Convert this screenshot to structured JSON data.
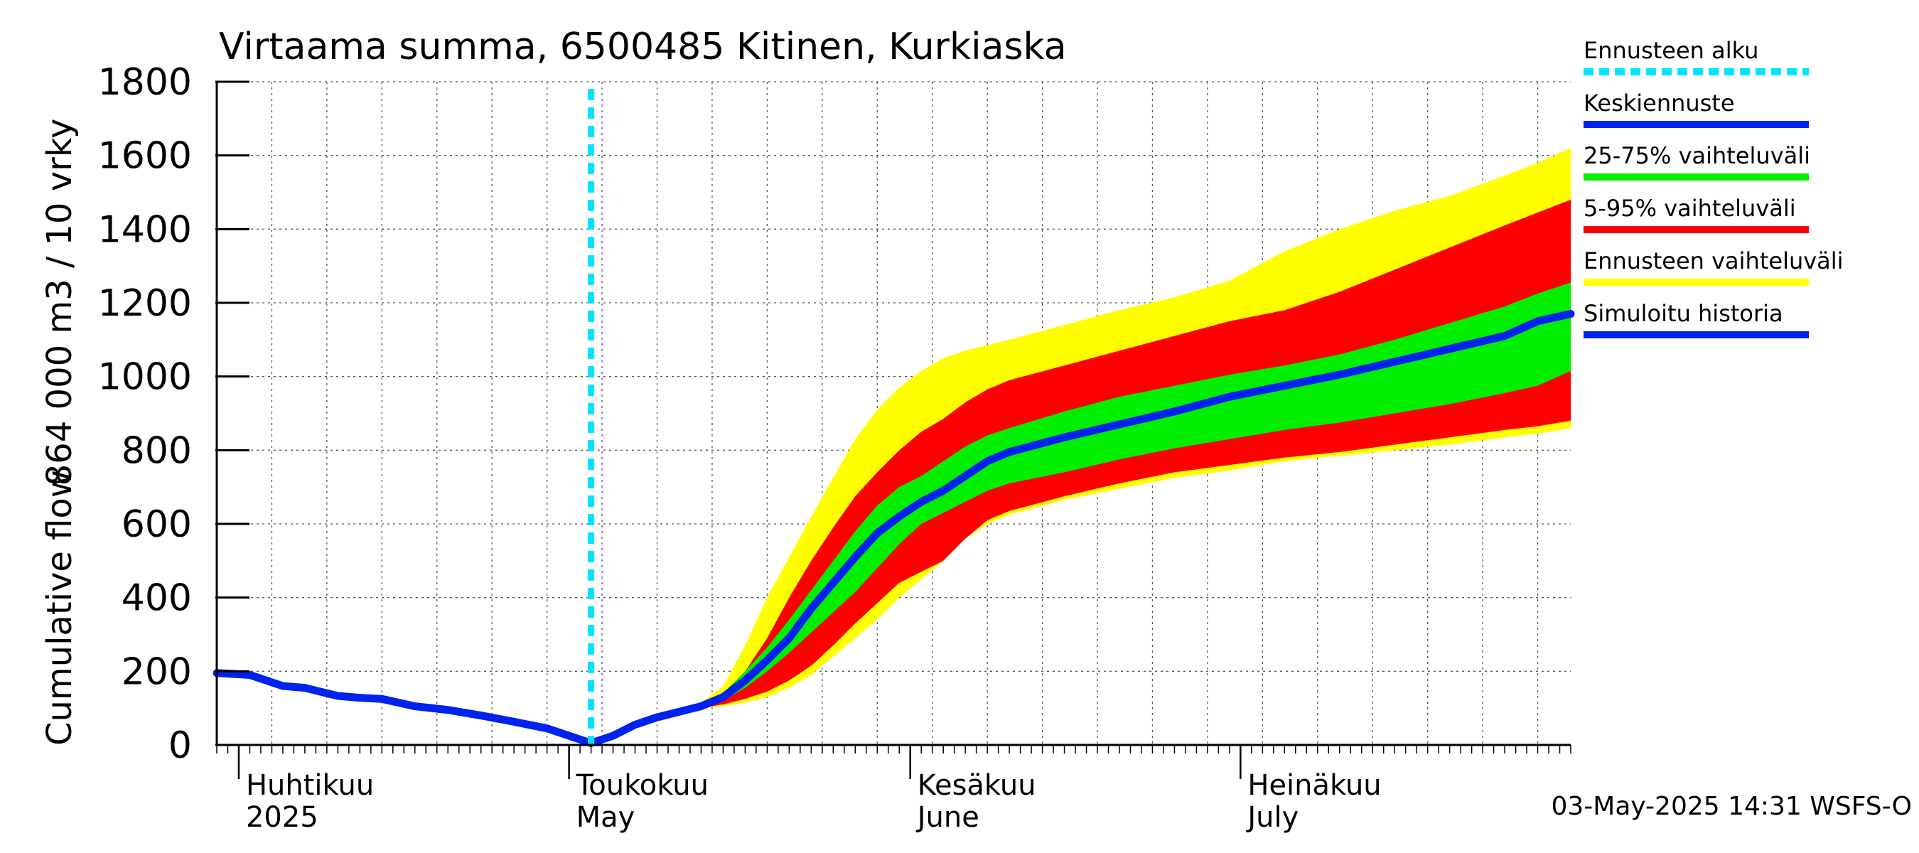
{
  "chart_data": {
    "type": "area",
    "title": "Virtaama summa, 6500485 Kitinen, Kurkiaska",
    "ylabel_line1": "864 000 m3 / 10 vrky",
    "ylabel_line2": "Cumulative flow",
    "ylim": [
      0,
      1800
    ],
    "yticks": [
      {
        "value": 0,
        "label": "0"
      },
      {
        "value": 200,
        "label": "200"
      },
      {
        "value": 400,
        "label": "400"
      },
      {
        "value": 600,
        "label": "600"
      },
      {
        "value": 800,
        "label": "800"
      },
      {
        "value": 1000,
        "label": "1000"
      },
      {
        "value": 1200,
        "label": "1200"
      },
      {
        "value": 1400,
        "label": "1400"
      },
      {
        "value": 1600,
        "label": "1600"
      },
      {
        "value": 1800,
        "label": "1800"
      }
    ],
    "xlim": [
      "2025-03-30",
      "2025-07-31"
    ],
    "month_labels": [
      {
        "date": "2025-04-01",
        "line1": "Huhtikuu",
        "line2": "2025"
      },
      {
        "date": "2025-05-01",
        "line1": "Toukokuu",
        "line2": "May"
      },
      {
        "date": "2025-06-01",
        "line1": "Kesäkuu",
        "line2": "June"
      },
      {
        "date": "2025-07-01",
        "line1": "Heinäkuu",
        "line2": "July"
      }
    ],
    "grid": true,
    "forecast_start": "2025-05-03",
    "footer": "03-May-2025 14:31 WSFS-O",
    "legend_placement": "right",
    "legend": [
      {
        "label": "Ennusteen alku",
        "color": "#00e5ff",
        "style": "dotted"
      },
      {
        "label": "Keskiennuste",
        "color": "#0022ee",
        "style": "solid"
      },
      {
        "label": "25-75% vaihteluväli",
        "color": "#00ee00",
        "style": "solid"
      },
      {
        "label": "5-95% vaihteluväli",
        "color": "#ff0000",
        "style": "solid"
      },
      {
        "label": "Ennusteen vaihteluväli",
        "color": "#ffff00",
        "style": "solid"
      },
      {
        "label": "Simuloitu historia",
        "color": "#0022ee",
        "style": "solid"
      }
    ],
    "colors": {
      "forecast_range": "#ffff00",
      "p5_95": "#ff0000",
      "p25_75": "#00ee00",
      "median": "#0022ee",
      "history": "#0022ee",
      "forecast_start": "#00e5ff"
    },
    "series": {
      "history": [
        [
          "2025-03-30",
          195
        ],
        [
          "2025-04-01",
          192
        ],
        [
          "2025-04-02",
          190
        ],
        [
          "2025-04-05",
          160
        ],
        [
          "2025-04-07",
          155
        ],
        [
          "2025-04-10",
          133
        ],
        [
          "2025-04-12",
          128
        ],
        [
          "2025-04-14",
          125
        ],
        [
          "2025-04-17",
          105
        ],
        [
          "2025-04-20",
          95
        ],
        [
          "2025-04-23",
          80
        ],
        [
          "2025-04-26",
          63
        ],
        [
          "2025-04-29",
          45
        ],
        [
          "2025-05-01",
          25
        ],
        [
          "2025-05-03",
          5
        ]
      ],
      "median": [
        [
          "2025-05-03",
          5
        ],
        [
          "2025-05-05",
          25
        ],
        [
          "2025-05-07",
          55
        ],
        [
          "2025-05-09",
          75
        ],
        [
          "2025-05-11",
          90
        ],
        [
          "2025-05-13",
          105
        ],
        [
          "2025-05-15",
          130
        ],
        [
          "2025-05-17",
          175
        ],
        [
          "2025-05-19",
          230
        ],
        [
          "2025-05-21",
          290
        ],
        [
          "2025-05-23",
          370
        ],
        [
          "2025-05-25",
          440
        ],
        [
          "2025-05-27",
          510
        ],
        [
          "2025-05-29",
          575
        ],
        [
          "2025-05-31",
          620
        ],
        [
          "2025-06-02",
          660
        ],
        [
          "2025-06-04",
          690
        ],
        [
          "2025-06-06",
          730
        ],
        [
          "2025-06-08",
          770
        ],
        [
          "2025-06-10",
          795
        ],
        [
          "2025-06-15",
          835
        ],
        [
          "2025-06-20",
          870
        ],
        [
          "2025-06-25",
          905
        ],
        [
          "2025-06-30",
          945
        ],
        [
          "2025-07-05",
          975
        ],
        [
          "2025-07-10",
          1005
        ],
        [
          "2025-07-15",
          1040
        ],
        [
          "2025-07-20",
          1075
        ],
        [
          "2025-07-25",
          1110
        ],
        [
          "2025-07-28",
          1150
        ],
        [
          "2025-07-31",
          1170
        ]
      ],
      "p25": [
        [
          "2025-05-13",
          100
        ],
        [
          "2025-05-15",
          120
        ],
        [
          "2025-05-17",
          155
        ],
        [
          "2025-05-19",
          200
        ],
        [
          "2025-05-21",
          250
        ],
        [
          "2025-05-23",
          305
        ],
        [
          "2025-05-25",
          360
        ],
        [
          "2025-05-27",
          415
        ],
        [
          "2025-05-29",
          480
        ],
        [
          "2025-05-31",
          545
        ],
        [
          "2025-06-02",
          600
        ],
        [
          "2025-06-04",
          630
        ],
        [
          "2025-06-06",
          660
        ],
        [
          "2025-06-08",
          690
        ],
        [
          "2025-06-10",
          710
        ],
        [
          "2025-06-15",
          740
        ],
        [
          "2025-06-20",
          775
        ],
        [
          "2025-06-25",
          805
        ],
        [
          "2025-06-30",
          830
        ],
        [
          "2025-07-05",
          855
        ],
        [
          "2025-07-10",
          875
        ],
        [
          "2025-07-15",
          900
        ],
        [
          "2025-07-20",
          925
        ],
        [
          "2025-07-25",
          955
        ],
        [
          "2025-07-28",
          975
        ],
        [
          "2025-07-31",
          1015
        ]
      ],
      "p75": [
        [
          "2025-05-13",
          105
        ],
        [
          "2025-05-15",
          140
        ],
        [
          "2025-05-17",
          200
        ],
        [
          "2025-05-19",
          265
        ],
        [
          "2025-05-21",
          340
        ],
        [
          "2025-05-23",
          420
        ],
        [
          "2025-05-25",
          500
        ],
        [
          "2025-05-27",
          580
        ],
        [
          "2025-05-29",
          650
        ],
        [
          "2025-05-31",
          700
        ],
        [
          "2025-06-02",
          730
        ],
        [
          "2025-06-04",
          770
        ],
        [
          "2025-06-06",
          810
        ],
        [
          "2025-06-08",
          840
        ],
        [
          "2025-06-10",
          860
        ],
        [
          "2025-06-15",
          905
        ],
        [
          "2025-06-20",
          945
        ],
        [
          "2025-06-25",
          975
        ],
        [
          "2025-06-30",
          1005
        ],
        [
          "2025-07-05",
          1030
        ],
        [
          "2025-07-10",
          1060
        ],
        [
          "2025-07-15",
          1100
        ],
        [
          "2025-07-20",
          1145
        ],
        [
          "2025-07-25",
          1190
        ],
        [
          "2025-07-28",
          1225
        ],
        [
          "2025-07-31",
          1255
        ]
      ],
      "p5": [
        [
          "2025-05-13",
          100
        ],
        [
          "2025-05-15",
          110
        ],
        [
          "2025-05-17",
          125
        ],
        [
          "2025-05-19",
          145
        ],
        [
          "2025-05-21",
          175
        ],
        [
          "2025-05-23",
          215
        ],
        [
          "2025-05-25",
          270
        ],
        [
          "2025-05-27",
          330
        ],
        [
          "2025-05-29",
          385
        ],
        [
          "2025-05-31",
          440
        ],
        [
          "2025-06-02",
          470
        ],
        [
          "2025-06-04",
          500
        ],
        [
          "2025-06-06",
          560
        ],
        [
          "2025-06-08",
          610
        ],
        [
          "2025-06-10",
          635
        ],
        [
          "2025-06-15",
          675
        ],
        [
          "2025-06-20",
          710
        ],
        [
          "2025-06-25",
          740
        ],
        [
          "2025-06-30",
          760
        ],
        [
          "2025-07-05",
          780
        ],
        [
          "2025-07-10",
          795
        ],
        [
          "2025-07-15",
          815
        ],
        [
          "2025-07-20",
          835
        ],
        [
          "2025-07-25",
          855
        ],
        [
          "2025-07-28",
          865
        ],
        [
          "2025-07-31",
          880
        ]
      ],
      "p95": [
        [
          "2025-05-13",
          110
        ],
        [
          "2025-05-15",
          140
        ],
        [
          "2025-05-17",
          200
        ],
        [
          "2025-05-19",
          290
        ],
        [
          "2025-05-21",
          400
        ],
        [
          "2025-05-23",
          500
        ],
        [
          "2025-05-25",
          590
        ],
        [
          "2025-05-27",
          675
        ],
        [
          "2025-05-29",
          740
        ],
        [
          "2025-05-31",
          800
        ],
        [
          "2025-06-02",
          850
        ],
        [
          "2025-06-04",
          885
        ],
        [
          "2025-06-06",
          930
        ],
        [
          "2025-06-08",
          965
        ],
        [
          "2025-06-10",
          990
        ],
        [
          "2025-06-15",
          1030
        ],
        [
          "2025-06-20",
          1070
        ],
        [
          "2025-06-25",
          1110
        ],
        [
          "2025-06-30",
          1150
        ],
        [
          "2025-07-05",
          1180
        ],
        [
          "2025-07-10",
          1230
        ],
        [
          "2025-07-15",
          1290
        ],
        [
          "2025-07-20",
          1350
        ],
        [
          "2025-07-25",
          1410
        ],
        [
          "2025-07-28",
          1445
        ],
        [
          "2025-07-31",
          1480
        ]
      ],
      "min": [
        [
          "2025-05-13",
          100
        ],
        [
          "2025-05-15",
          105
        ],
        [
          "2025-05-17",
          115
        ],
        [
          "2025-05-19",
          130
        ],
        [
          "2025-05-21",
          155
        ],
        [
          "2025-05-23",
          190
        ],
        [
          "2025-05-25",
          240
        ],
        [
          "2025-05-27",
          290
        ],
        [
          "2025-05-29",
          340
        ],
        [
          "2025-05-31",
          400
        ],
        [
          "2025-06-02",
          450
        ],
        [
          "2025-06-04",
          500
        ],
        [
          "2025-06-06",
          560
        ],
        [
          "2025-06-08",
          600
        ],
        [
          "2025-06-10",
          625
        ],
        [
          "2025-06-15",
          665
        ],
        [
          "2025-06-20",
          695
        ],
        [
          "2025-06-25",
          725
        ],
        [
          "2025-06-30",
          745
        ],
        [
          "2025-07-05",
          770
        ],
        [
          "2025-07-10",
          785
        ],
        [
          "2025-07-15",
          800
        ],
        [
          "2025-07-20",
          815
        ],
        [
          "2025-07-25",
          835
        ],
        [
          "2025-07-28",
          845
        ],
        [
          "2025-07-31",
          860
        ]
      ],
      "max": [
        [
          "2025-05-13",
          115
        ],
        [
          "2025-05-15",
          160
        ],
        [
          "2025-05-17",
          270
        ],
        [
          "2025-05-19",
          400
        ],
        [
          "2025-05-21",
          510
        ],
        [
          "2025-05-23",
          620
        ],
        [
          "2025-05-25",
          725
        ],
        [
          "2025-05-27",
          830
        ],
        [
          "2025-05-29",
          910
        ],
        [
          "2025-05-31",
          970
        ],
        [
          "2025-06-02",
          1015
        ],
        [
          "2025-06-04",
          1050
        ],
        [
          "2025-06-06",
          1070
        ],
        [
          "2025-06-08",
          1085
        ],
        [
          "2025-06-10",
          1100
        ],
        [
          "2025-06-15",
          1140
        ],
        [
          "2025-06-20",
          1180
        ],
        [
          "2025-06-25",
          1215
        ],
        [
          "2025-06-30",
          1260
        ],
        [
          "2025-07-05",
          1340
        ],
        [
          "2025-07-10",
          1400
        ],
        [
          "2025-07-15",
          1450
        ],
        [
          "2025-07-20",
          1490
        ],
        [
          "2025-07-25",
          1545
        ],
        [
          "2025-07-28",
          1580
        ],
        [
          "2025-07-31",
          1620
        ]
      ]
    }
  }
}
